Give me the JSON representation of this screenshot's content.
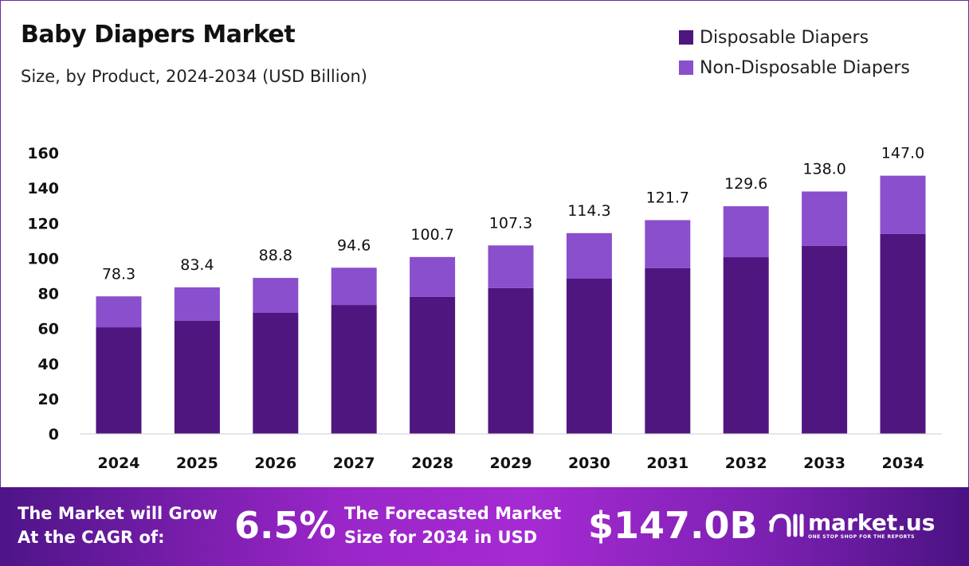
{
  "chart_data": {
    "type": "bar",
    "stacked": true,
    "title": "Baby Diapers Market",
    "subtitle": "Size, by Product, 2024-2034 (USD Billion)",
    "categories": [
      "2024",
      "2025",
      "2026",
      "2027",
      "2028",
      "2029",
      "2030",
      "2031",
      "2032",
      "2033",
      "2034"
    ],
    "series": [
      {
        "name": "Disposable Diapers",
        "color": "#4f1680",
        "values": [
          60.7,
          64.4,
          68.9,
          73.4,
          78.0,
          83.0,
          88.4,
          94.3,
          100.6,
          107.0,
          113.8
        ]
      },
      {
        "name": "Non-Disposable Diapers",
        "color": "#8a4fcc",
        "values": [
          17.6,
          19.0,
          19.9,
          21.2,
          22.7,
          24.3,
          25.9,
          27.4,
          29.0,
          31.0,
          33.2
        ]
      }
    ],
    "totals": [
      "78.3",
      "83.4",
      "88.8",
      "94.6",
      "100.7",
      "107.3",
      "114.3",
      "121.7",
      "129.6",
      "138.0",
      "147.0"
    ],
    "ylim": [
      0,
      160
    ],
    "yticks": [
      "0",
      "20",
      "40",
      "60",
      "80",
      "100",
      "120",
      "140",
      "160"
    ],
    "grid": false,
    "legend": "top-right"
  },
  "footer": {
    "cagr_label_1": "The Market will Grow",
    "cagr_label_2": "At the CAGR of:",
    "cagr_value": "6.5%",
    "forecast_label_1": "The Forecasted Market",
    "forecast_label_2": "Size for 2034 in USD",
    "forecast_value": "$147.0B",
    "logo_name": "market.us",
    "logo_tagline": "ONE STOP SHOP FOR THE REPORTS"
  }
}
